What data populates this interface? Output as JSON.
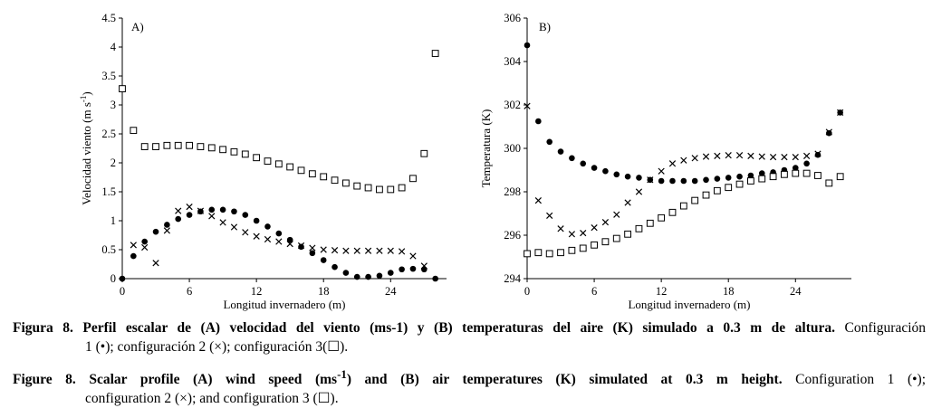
{
  "chart_data": [
    {
      "type": "scatter",
      "panel": "A)",
      "xlabel": "Longitud invernadero (m)",
      "ylabel": "Velocidad viento (m s-1)",
      "ylabel_parts": {
        "main": "Velocidad viento (m s",
        "sup": "-1",
        "end": ")"
      },
      "xlim": [
        0,
        29
      ],
      "ylim": [
        0,
        4.5
      ],
      "xticks": [
        0,
        6,
        12,
        18,
        24
      ],
      "xtick_labels": [
        "0",
        "6",
        "12",
        "18",
        "24"
      ],
      "yticks": [
        0,
        0.5,
        1,
        1.5,
        2,
        2.5,
        3,
        3.5,
        4,
        4.5
      ],
      "ytick_labels": [
        "0",
        "0.5",
        "1",
        "1.5",
        "2",
        "2.5",
        "3",
        "3.5",
        "4",
        "4.5"
      ],
      "series": [
        {
          "name": "Configuración 1",
          "marker": "dot",
          "x": [
            0,
            1,
            2,
            3,
            4,
            5,
            6,
            7,
            8,
            9,
            10,
            11,
            12,
            13,
            14,
            15,
            16,
            17,
            18,
            19,
            20,
            21,
            22,
            23,
            24,
            25,
            26,
            27,
            28
          ],
          "y": [
            0.0,
            0.39,
            0.64,
            0.81,
            0.93,
            1.03,
            1.1,
            1.16,
            1.19,
            1.19,
            1.16,
            1.1,
            1.0,
            0.9,
            0.78,
            0.67,
            0.55,
            0.44,
            0.32,
            0.2,
            0.1,
            0.03,
            0.03,
            0.05,
            0.1,
            0.16,
            0.17,
            0.16,
            0.0
          ]
        },
        {
          "name": "Configuración 2",
          "marker": "x",
          "x": [
            1,
            2,
            3,
            4,
            5,
            6,
            7,
            8,
            9,
            10,
            11,
            12,
            13,
            14,
            15,
            16,
            17,
            18,
            19,
            20,
            21,
            22,
            23,
            24,
            25,
            26,
            27
          ],
          "y": [
            0.58,
            0.54,
            0.27,
            0.83,
            1.17,
            1.24,
            1.17,
            1.08,
            0.97,
            0.89,
            0.8,
            0.73,
            0.68,
            0.64,
            0.6,
            0.57,
            0.53,
            0.5,
            0.49,
            0.48,
            0.48,
            0.48,
            0.48,
            0.48,
            0.47,
            0.39,
            0.22
          ]
        },
        {
          "name": "Configuración 3",
          "marker": "square",
          "x": [
            0,
            1,
            2,
            3,
            4,
            5,
            6,
            7,
            8,
            9,
            10,
            11,
            12,
            13,
            14,
            15,
            16,
            17,
            18,
            19,
            20,
            21,
            22,
            23,
            24,
            25,
            26,
            27,
            28
          ],
          "y": [
            3.28,
            2.56,
            2.28,
            2.28,
            2.3,
            2.3,
            2.3,
            2.28,
            2.26,
            2.23,
            2.19,
            2.15,
            2.09,
            2.03,
            1.98,
            1.93,
            1.87,
            1.81,
            1.76,
            1.7,
            1.65,
            1.6,
            1.57,
            1.54,
            1.54,
            1.57,
            1.73,
            2.16,
            3.89
          ]
        }
      ]
    },
    {
      "type": "scatter",
      "panel": "B)",
      "xlabel": "Longitud invernadero (m)",
      "ylabel": "Temperatura (K)",
      "xlim": [
        0,
        29
      ],
      "ylim": [
        294,
        306
      ],
      "xticks": [
        0,
        6,
        12,
        18,
        24
      ],
      "xtick_labels": [
        "0",
        "6",
        "12",
        "18",
        "24"
      ],
      "yticks": [
        294,
        296,
        298,
        300,
        302,
        304,
        306
      ],
      "ytick_labels": [
        "294",
        "296",
        "298",
        "300",
        "302",
        "304",
        "306"
      ],
      "series": [
        {
          "name": "Configuración 1",
          "marker": "dot",
          "x": [
            0,
            1,
            2,
            3,
            4,
            5,
            6,
            7,
            8,
            9,
            10,
            11,
            12,
            13,
            14,
            15,
            16,
            17,
            18,
            19,
            20,
            21,
            22,
            23,
            24,
            25,
            26,
            27,
            28
          ],
          "y": [
            304.75,
            301.25,
            300.3,
            299.85,
            299.55,
            299.3,
            299.1,
            298.95,
            298.8,
            298.7,
            298.65,
            298.55,
            298.5,
            298.5,
            298.5,
            298.5,
            298.55,
            298.6,
            298.65,
            298.7,
            298.75,
            298.85,
            298.9,
            299.0,
            299.1,
            299.3,
            299.7,
            300.7,
            301.65
          ]
        },
        {
          "name": "Configuración 2",
          "marker": "x",
          "x": [
            0,
            1,
            2,
            3,
            4,
            5,
            6,
            7,
            8,
            9,
            10,
            11,
            12,
            13,
            14,
            15,
            16,
            17,
            18,
            19,
            20,
            21,
            22,
            23,
            24,
            25,
            26,
            27,
            28
          ],
          "y": [
            301.95,
            297.6,
            296.9,
            296.3,
            296.05,
            296.1,
            296.35,
            296.6,
            296.95,
            297.5,
            298.0,
            298.55,
            298.95,
            299.3,
            299.45,
            299.55,
            299.62,
            299.65,
            299.68,
            299.68,
            299.65,
            299.62,
            299.6,
            299.6,
            299.6,
            299.65,
            299.75,
            300.75,
            301.65
          ]
        },
        {
          "name": "Configuración 3",
          "marker": "square",
          "x": [
            0,
            1,
            2,
            3,
            4,
            5,
            6,
            7,
            8,
            9,
            10,
            11,
            12,
            13,
            14,
            15,
            16,
            17,
            18,
            19,
            20,
            21,
            22,
            23,
            24,
            25,
            26,
            27,
            28
          ],
          "y": [
            295.15,
            295.2,
            295.15,
            295.2,
            295.3,
            295.4,
            295.55,
            295.7,
            295.85,
            296.05,
            296.3,
            296.55,
            296.8,
            297.05,
            297.35,
            297.6,
            297.85,
            298.05,
            298.2,
            298.35,
            298.5,
            298.6,
            298.7,
            298.8,
            298.85,
            298.85,
            298.75,
            298.4,
            298.7
          ]
        }
      ]
    }
  ],
  "caption_es": {
    "label": "Figura 8.",
    "bold": "Perfil escalar de (A) velocidad del viento (ms-1) y (B) temperaturas del aire (K) simulado a 0.3 m de altura.",
    "line1_rest": "Configuración",
    "line2": "1 (•); configuración 2 (×); configuración 3(☐)."
  },
  "caption_en": {
    "label": "Figure 8.",
    "bold_a": "Scalar profile (A) wind speed (ms",
    "bold_sup": "-1",
    "bold_b": ") and (B) air temperatures (K) simulated at 0.3 m height.",
    "line1_rest": "Configuration 1 (•);",
    "line2": "configuration 2 (×); and configuration 3 (☐)."
  }
}
